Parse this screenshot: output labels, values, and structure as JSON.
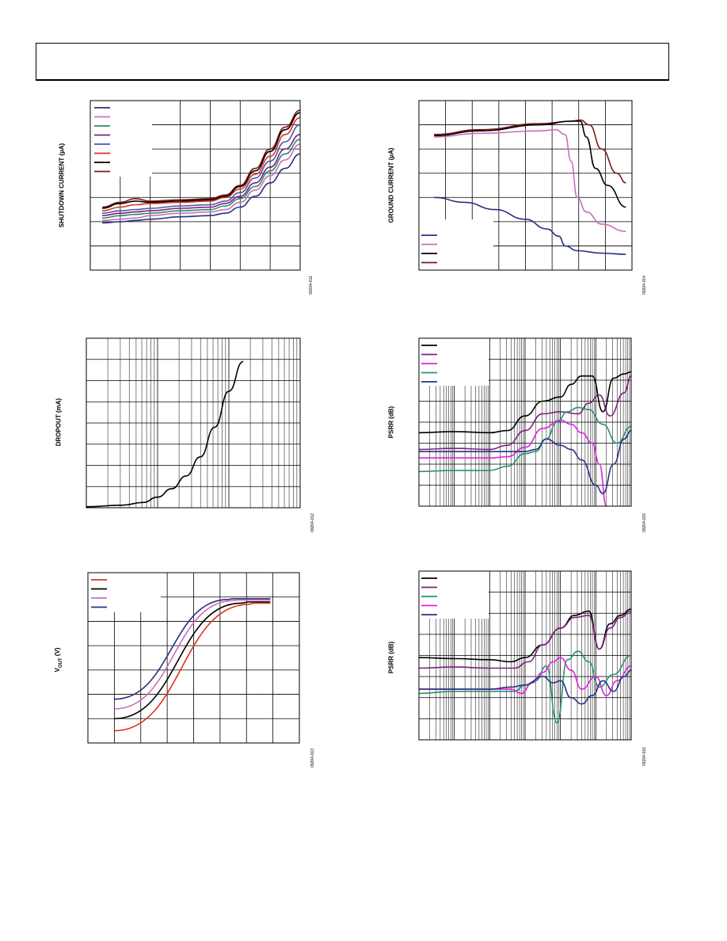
{
  "colors": {
    "navy": "#27327f",
    "pink": "#cc6eb8",
    "teal": "#2c8c6a",
    "purple": "#7d1f7d",
    "blue": "#4a58a6",
    "red": "#e0311f",
    "black": "#000000",
    "maroon": "#7a1a1a",
    "magenta": "#e020e0",
    "green": "#2a9270"
  },
  "charts": [
    {
      "id": "shutdown",
      "ylabel": "SHUTDOWN CURRENT (µA)",
      "fig": "09204-011",
      "chart_data": {
        "type": "line",
        "title": "",
        "xlabel": "",
        "ylabel": "SHUTDOWN CURRENT (µA)",
        "xlim": [
          0,
          7
        ],
        "ylim": [
          0,
          7
        ],
        "series": [
          {
            "color": "#7a1a1a",
            "x": [
              0.4,
              1,
              1.5,
              2,
              3,
              4,
              4.5,
              5,
              5.5,
              6,
              6.5,
              7
            ],
            "y": [
              2.6,
              2.8,
              2.95,
              2.85,
              2.9,
              2.95,
              3.1,
              3.5,
              4.2,
              5.0,
              5.9,
              6.6
            ]
          },
          {
            "color": "#000000",
            "x": [
              0.4,
              1,
              1.5,
              2,
              3,
              4,
              4.5,
              5,
              5.5,
              6,
              6.5,
              7
            ],
            "y": [
              2.55,
              2.75,
              2.85,
              2.8,
              2.85,
              2.9,
              3.05,
              3.45,
              4.1,
              4.9,
              5.8,
              6.5
            ]
          },
          {
            "color": "#e0311f",
            "x": [
              0.4,
              1,
              1.5,
              2,
              3,
              4,
              4.5,
              5,
              5.5,
              6,
              6.5,
              7
            ],
            "y": [
              2.45,
              2.6,
              2.7,
              2.75,
              2.8,
              2.85,
              3.0,
              3.35,
              3.95,
              4.7,
              5.6,
              6.3
            ]
          },
          {
            "color": "#4a58a6",
            "x": [
              0.4,
              1,
              1.5,
              2,
              3,
              4,
              4.5,
              5,
              5.5,
              6,
              6.5,
              7
            ],
            "y": [
              2.35,
              2.45,
              2.5,
              2.55,
              2.65,
              2.7,
              2.85,
              3.2,
              3.8,
              4.5,
              5.3,
              6.0
            ]
          },
          {
            "color": "#7d1f7d",
            "x": [
              0.4,
              1,
              1.5,
              2,
              3,
              4,
              4.5,
              5,
              5.5,
              6,
              6.5,
              7
            ],
            "y": [
              2.25,
              2.35,
              2.4,
              2.45,
              2.55,
              2.6,
              2.75,
              3.05,
              3.6,
              4.25,
              5.0,
              5.6
            ]
          },
          {
            "color": "#2c8c6a",
            "x": [
              0.4,
              1,
              1.5,
              2,
              3,
              4,
              4.5,
              5,
              5.5,
              6,
              6.5,
              7
            ],
            "y": [
              2.15,
              2.25,
              2.3,
              2.35,
              2.45,
              2.5,
              2.65,
              2.95,
              3.45,
              4.1,
              4.8,
              5.4
            ]
          },
          {
            "color": "#cc6eb8",
            "x": [
              0.4,
              1,
              1.5,
              2,
              3,
              4,
              4.5,
              5,
              5.5,
              6,
              6.5,
              7
            ],
            "y": [
              2.05,
              2.1,
              2.15,
              2.25,
              2.35,
              2.4,
              2.5,
              2.8,
              3.3,
              3.9,
              4.55,
              5.2
            ]
          },
          {
            "color": "#27327f",
            "x": [
              0.4,
              1,
              1.5,
              2,
              3,
              4,
              4.5,
              5,
              5.5,
              6,
              6.5,
              7
            ],
            "y": [
              1.95,
              2.0,
              2.05,
              2.1,
              2.2,
              2.25,
              2.35,
              2.6,
              3.05,
              3.6,
              4.2,
              4.8
            ]
          }
        ]
      }
    },
    {
      "id": "ground",
      "ylabel": "GROUND CURRENT (µA)",
      "fig": "09204-014",
      "chart_data": {
        "type": "line",
        "title": "",
        "xlabel": "",
        "ylabel": "GROUND CURRENT (µA)",
        "xlim": [
          0,
          7
        ],
        "ylim": [
          0,
          7
        ],
        "series": [
          {
            "color": "#7a1a1a",
            "x": [
              0.5,
              2,
              4,
              5,
              5.3,
              5.6,
              6,
              6.5,
              6.8
            ],
            "y": [
              5.6,
              5.8,
              6.05,
              6.15,
              6.2,
              6.0,
              5.0,
              4.0,
              3.6
            ]
          },
          {
            "color": "#000000",
            "x": [
              0.5,
              2,
              4,
              5,
              5.3,
              5.5,
              5.8,
              6.2,
              6.8
            ],
            "y": [
              5.55,
              5.75,
              6.0,
              6.15,
              6.15,
              5.5,
              4.2,
              3.5,
              2.6
            ]
          },
          {
            "color": "#cc6eb8",
            "x": [
              0.5,
              2,
              4,
              4.5,
              4.8,
              5.0,
              5.2,
              5.5,
              6,
              6.8
            ],
            "y": [
              5.5,
              5.65,
              5.75,
              5.8,
              5.6,
              4.5,
              3.0,
              2.4,
              1.9,
              1.6
            ]
          },
          {
            "color": "#27327f",
            "x": [
              0.5,
              1.5,
              2.5,
              3.5,
              4.2,
              4.6,
              4.8,
              5.2,
              6,
              6.8
            ],
            "y": [
              3.0,
              2.8,
              2.5,
              2.1,
              1.7,
              1.4,
              1.0,
              0.8,
              0.7,
              0.65
            ]
          }
        ]
      }
    },
    {
      "id": "dropout",
      "ylabel": "DROPOUT (mA)",
      "fig": "09204-012",
      "chart_data": {
        "type": "line",
        "title": "",
        "xlabel": "",
        "ylabel": "DROPOUT (mA)",
        "xscale": "log",
        "xlim": [
          0,
          3
        ],
        "ylim": [
          0,
          8
        ],
        "series": [
          {
            "color": "#000000",
            "x": [
              0,
              0.5,
              0.8,
              1.0,
              1.2,
              1.4,
              1.6,
              1.8,
              2.0,
              2.2
            ],
            "y": [
              0.05,
              0.12,
              0.25,
              0.5,
              0.9,
              1.5,
              2.4,
              3.8,
              5.5,
              6.9
            ]
          }
        ]
      }
    },
    {
      "id": "psrr1",
      "ylabel": "PSRR (dB)",
      "fig": "09204-015",
      "chart_data": {
        "type": "line",
        "title": "",
        "xlabel": "",
        "ylabel": "PSRR (dB)",
        "xscale": "log",
        "xlim": [
          1,
          7
        ],
        "ylim": [
          0,
          8
        ],
        "series": [
          {
            "color": "#000000",
            "x": [
              1,
              2,
              3,
              3.5,
              4,
              4.5,
              5,
              5.3,
              5.6,
              5.9,
              6.2,
              6.5,
              6.8,
              7
            ],
            "y": [
              3.5,
              3.55,
              3.5,
              3.6,
              4.3,
              5.0,
              5.2,
              5.8,
              6.2,
              6.2,
              4.5,
              6.1,
              6.3,
              6.4
            ]
          },
          {
            "color": "#7d1f7d",
            "x": [
              1,
              2,
              3,
              3.5,
              4,
              4.5,
              5,
              5.5,
              5.8,
              6.1,
              6.4,
              6.8,
              7
            ],
            "y": [
              2.7,
              2.75,
              2.7,
              2.9,
              3.6,
              4.4,
              4.5,
              4.4,
              4.9,
              5.3,
              4.3,
              5.4,
              6.2
            ]
          },
          {
            "color": "#e020e0",
            "x": [
              1,
              2,
              3,
              3.5,
              4,
              4.5,
              5,
              5.3,
              5.6,
              5.9,
              6.1,
              6.3
            ],
            "y": [
              2.3,
              2.3,
              2.3,
              2.35,
              2.8,
              3.7,
              4.1,
              3.9,
              3.5,
              3.0,
              2.0,
              0.0
            ]
          },
          {
            "color": "#2a9270",
            "x": [
              1,
              2,
              3,
              3.5,
              4,
              4.3,
              4.6,
              4.9,
              5.2,
              5.5,
              5.8,
              6.2,
              6.6,
              7
            ],
            "y": [
              1.65,
              1.7,
              1.7,
              1.9,
              2.5,
              2.6,
              3.2,
              4.0,
              4.5,
              4.7,
              4.6,
              3.9,
              3.0,
              3.8
            ]
          },
          {
            "color": "#27327f",
            "x": [
              1,
              2,
              3,
              4,
              4.3,
              4.6,
              5,
              5.3,
              5.6,
              6,
              6.2,
              6.5,
              6.8,
              7
            ],
            "y": [
              2.6,
              2.6,
              2.6,
              2.6,
              2.7,
              3.2,
              2.9,
              2.7,
              2.2,
              1.0,
              0.6,
              2.0,
              3.2,
              3.6
            ]
          }
        ]
      }
    },
    {
      "id": "vout",
      "ylabel": "V",
      "ylabel_sub": "OUT",
      "ylabel_unit": "(V)",
      "fig": "09204-013",
      "chart_data": {
        "type": "line",
        "title": "",
        "xlabel": "",
        "ylabel": "VOUT (V)",
        "xlim": [
          0,
          8
        ],
        "ylim": [
          0,
          7
        ],
        "series": [
          {
            "color": "#27327f",
            "x": [
              1,
              5.3,
              5.5,
              6.9
            ],
            "y": [
              1.8,
              5.9,
              5.93,
              5.93
            ]
          },
          {
            "color": "#cc6eb8",
            "x": [
              1,
              5.5,
              5.7,
              6.9
            ],
            "y": [
              1.4,
              5.85,
              5.88,
              5.88
            ]
          },
          {
            "color": "#000000",
            "x": [
              1,
              5.8,
              6.1,
              6.9
            ],
            "y": [
              1.0,
              5.75,
              5.8,
              5.8
            ]
          },
          {
            "color": "#e0311f",
            "x": [
              1,
              6.1,
              6.3,
              6.9
            ],
            "y": [
              0.5,
              5.7,
              5.75,
              5.75
            ]
          }
        ]
      }
    },
    {
      "id": "psrr2",
      "ylabel": "PSRR (dB)",
      "fig": "09204-016",
      "chart_data": {
        "type": "line",
        "title": "",
        "xlabel": "",
        "ylabel": "PSRR (dB)",
        "xscale": "log",
        "xlim": [
          1,
          7
        ],
        "ylim": [
          0,
          8
        ],
        "series": [
          {
            "color": "#000000",
            "x": [
              1,
              2,
              3,
              3.6,
              4,
              4.5,
              5,
              5.4,
              5.8,
              6.1,
              6.4,
              6.7,
              7
            ],
            "y": [
              3.9,
              3.85,
              3.8,
              3.7,
              3.9,
              4.5,
              5.3,
              5.9,
              6.1,
              4.3,
              5.5,
              5.9,
              6.2
            ]
          },
          {
            "color": "#7d1f7d",
            "x": [
              1,
              2,
              3,
              3.7,
              4.1,
              4.5,
              5,
              5.4,
              5.8,
              6.1,
              6.4,
              6.7,
              7
            ],
            "y": [
              3.4,
              3.45,
              3.4,
              3.4,
              3.7,
              4.5,
              5.3,
              5.8,
              5.9,
              4.3,
              5.3,
              5.8,
              6.1
            ]
          },
          {
            "color": "#2a9270",
            "x": [
              1,
              2,
              3,
              3.7,
              4,
              4.3,
              4.6,
              4.9,
              5.2,
              5.5,
              5.8,
              6.1,
              6.5,
              7
            ],
            "y": [
              2.2,
              2.3,
              2.3,
              2.3,
              2.6,
              2.8,
              3.5,
              0.8,
              3.8,
              4.2,
              3.7,
              2.5,
              3.1,
              4.0
            ]
          },
          {
            "color": "#e020e0",
            "x": [
              1,
              2,
              3,
              3.6,
              3.9,
              4.2,
              4.5,
              4.8,
              5.0,
              5.3,
              5.6,
              6.0,
              6.3,
              6.6,
              7
            ],
            "y": [
              2.4,
              2.4,
              2.4,
              2.4,
              2.2,
              2.7,
              3.2,
              3.7,
              3.9,
              3.3,
              2.4,
              3.0,
              2.1,
              2.8,
              3.5
            ]
          },
          {
            "color": "#27327f",
            "x": [
              1,
              2,
              3,
              3.6,
              4,
              4.5,
              4.8,
              5.0,
              5.3,
              5.6,
              5.9,
              6.2,
              6.5,
              6.8,
              7
            ],
            "y": [
              2.4,
              2.4,
              2.4,
              2.5,
              2.6,
              3.0,
              2.7,
              2.8,
              2.0,
              1.7,
              2.1,
              2.8,
              2.3,
              3.0,
              3.3
            ]
          }
        ]
      }
    }
  ]
}
